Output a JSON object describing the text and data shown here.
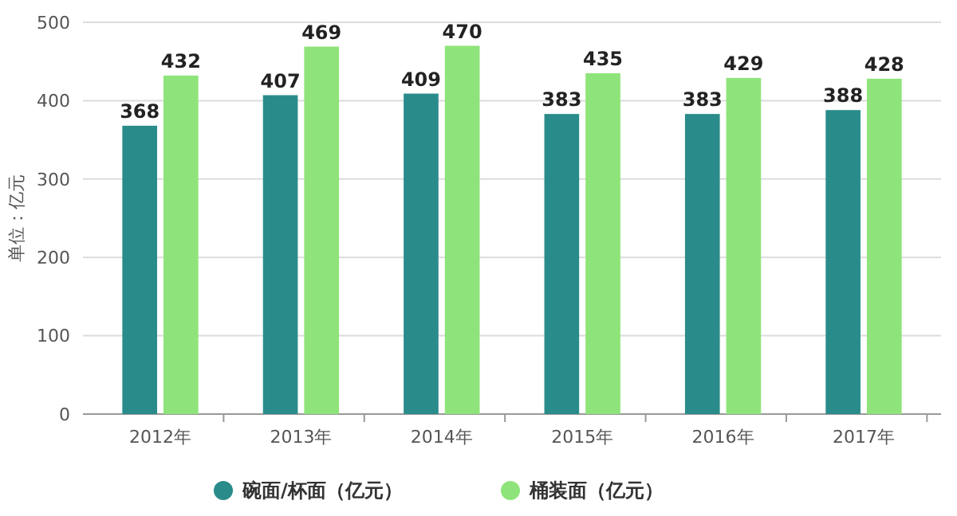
{
  "chart_data": {
    "type": "bar",
    "ylabel": "单位：亿元",
    "categories": [
      "2012年",
      "2013年",
      "2014年",
      "2015年",
      "2016年",
      "2017年"
    ],
    "series": [
      {
        "name": "碗面/杯面（亿元）",
        "color": "#2a8c8a",
        "values": [
          368,
          407,
          409,
          383,
          383,
          388
        ]
      },
      {
        "name": "桶装面（亿元）",
        "color": "#8ee47a",
        "values": [
          432,
          469,
          470,
          435,
          429,
          428
        ]
      }
    ],
    "ylim": [
      0,
      500
    ],
    "yticks": [
      0,
      100,
      200,
      300,
      400,
      500
    ],
    "grid": "y",
    "legend": "bottom",
    "data_labels": true
  }
}
